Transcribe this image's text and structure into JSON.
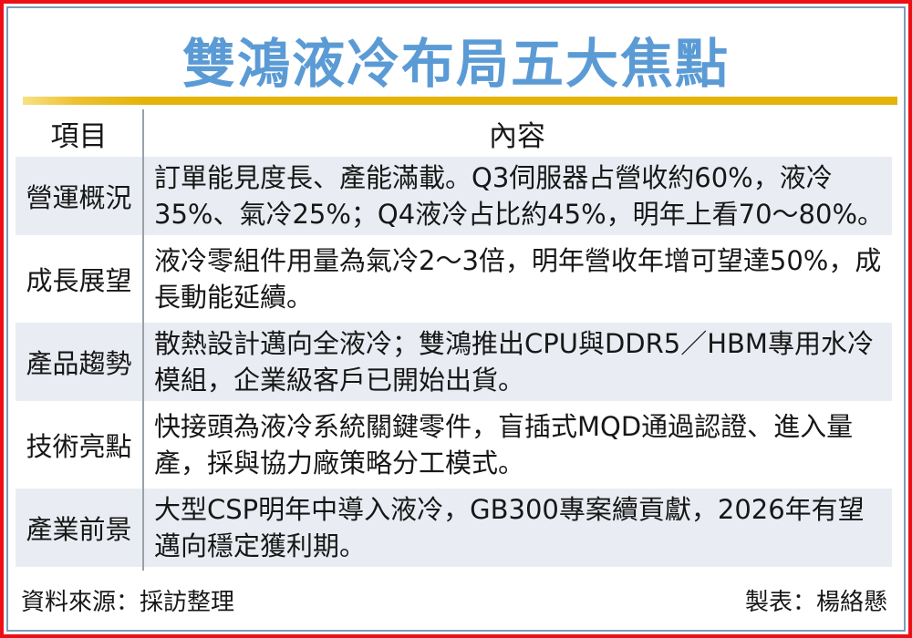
{
  "title": "雙鴻液冷布局五大焦點",
  "colors": {
    "title_blue": "#5b9bd5",
    "gold_bar": "#e4b307",
    "outer_border_red": "#ec1016",
    "inner_border_blue": "#7f9db9",
    "row_shade": "#e9edf3",
    "divider_gray": "#9aa1a9"
  },
  "chart_data": {
    "type": "table",
    "title": "雙鴻液冷布局五大焦點",
    "columns": [
      "項目",
      "內容"
    ],
    "rows": [
      [
        "營運概況",
        "訂單能見度長、產能滿載。Q3伺服器占營收約60%，液冷35%、氣冷25%；Q4液冷占比約45%，明年上看70～80%。"
      ],
      [
        "成長展望",
        "液冷零組件用量為氣冷2～3倍，明年營收年增可望達50%，成長動能延續。"
      ],
      [
        "產品趨勢",
        "散熱設計邁向全液冷；雙鴻推出CPU與DDR5／HBM專用水冷模組，企業級客戶已開始出貨。"
      ],
      [
        "技術亮點",
        "快接頭為液冷系統關鍵零件，盲插式MQD通過認證、進入量產，採與協力廠策略分工模式。"
      ],
      [
        "產業前景",
        "大型CSP明年中導入液冷，GB300專案續貢獻，2026年有望邁向穩定獲利期。"
      ]
    ],
    "source_note": "資料來源：採訪整理",
    "credit_note": "製表：楊絡懸",
    "layout": {
      "grid": false,
      "zebra_striping": "rows 1,3,5 shaded"
    }
  }
}
